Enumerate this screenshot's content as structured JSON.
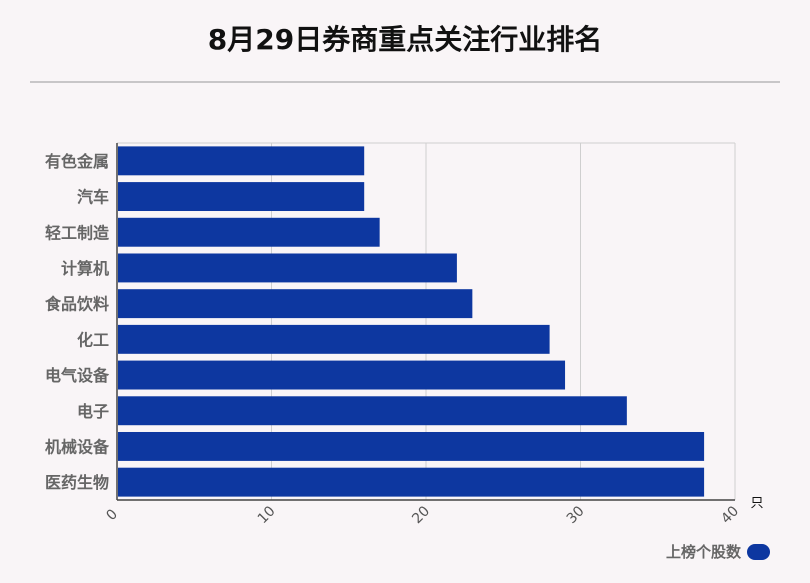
{
  "title": "8月29日券商重点关注行业排名",
  "chart_data": {
    "type": "bar",
    "orientation": "horizontal",
    "title": "8月29日券商重点关注行业排名",
    "categories": [
      "有色金属",
      "汽车",
      "轻工制造",
      "计算机",
      "食品饮料",
      "化工",
      "电气设备",
      "电子",
      "机械设备",
      "医药生物"
    ],
    "series": [
      {
        "name": "上榜个股数",
        "values": [
          16,
          16,
          17,
          22,
          23,
          28,
          29,
          33,
          38,
          38
        ],
        "color": "#0d37a0"
      }
    ],
    "xlim": [
      0,
      40
    ],
    "xticks": [
      "0",
      "10",
      "20",
      "30",
      "40"
    ],
    "xunit": "只",
    "grid": true,
    "legend_position": "bottom-right"
  },
  "legend": {
    "label": "上榜个股数"
  }
}
